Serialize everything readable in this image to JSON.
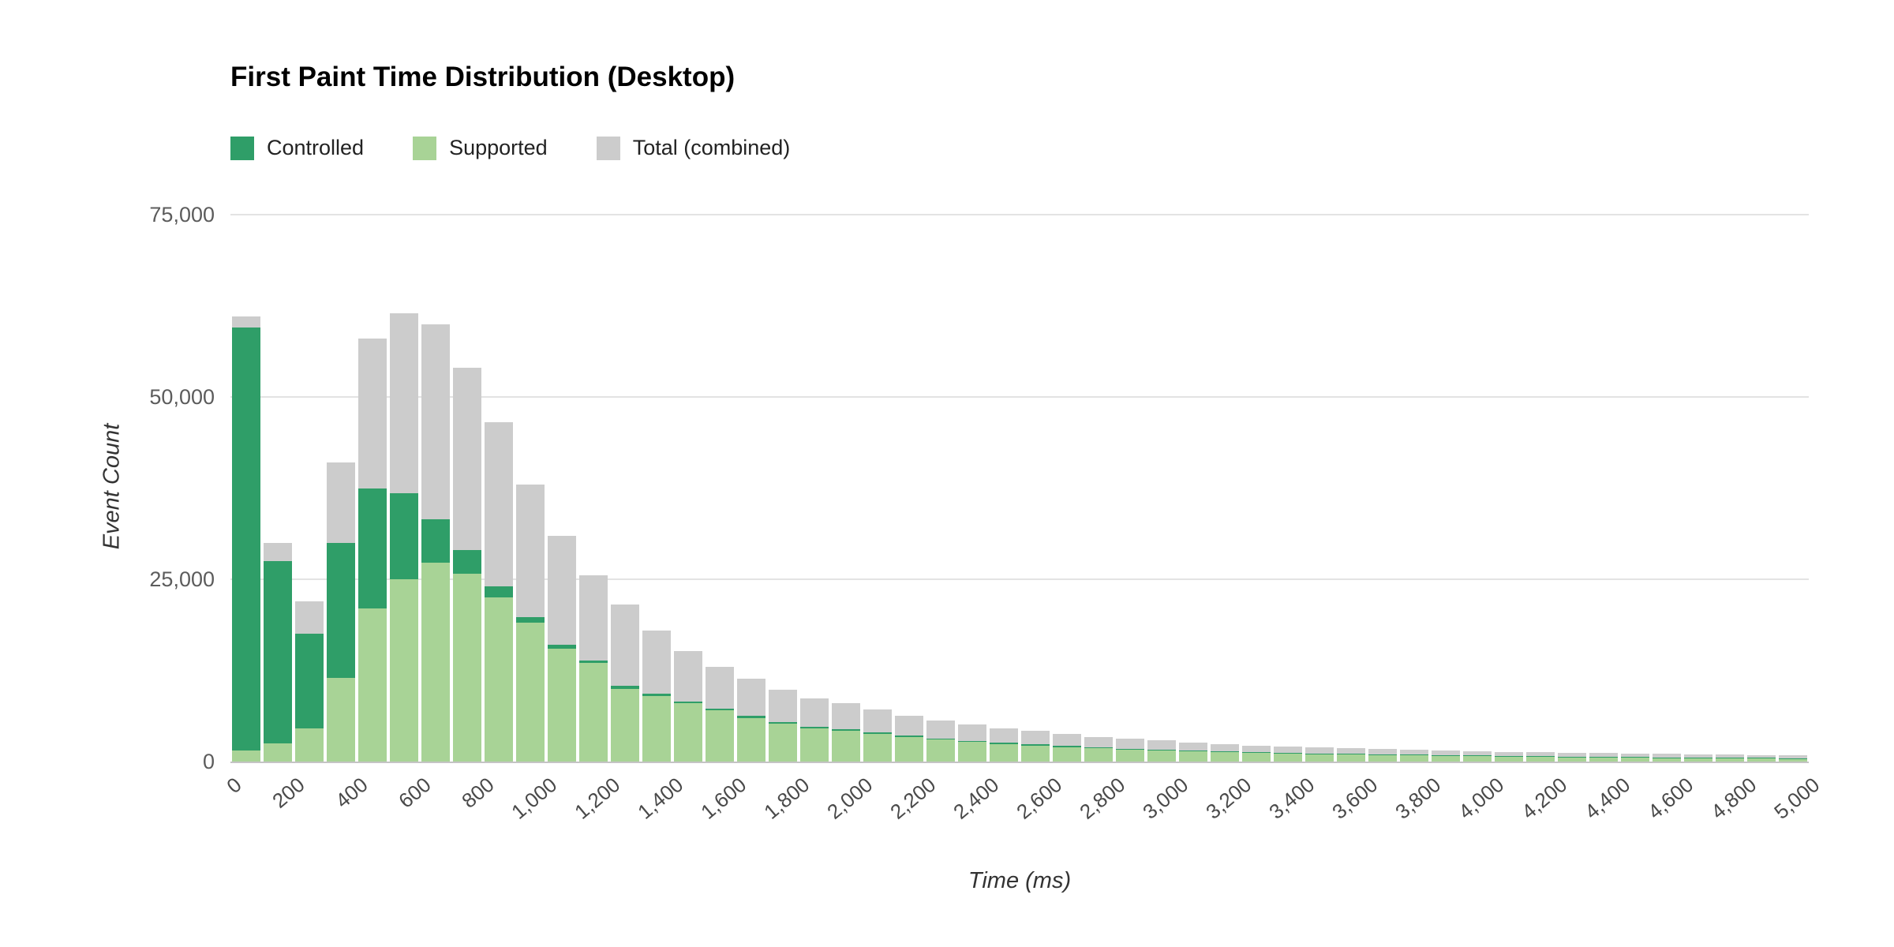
{
  "title": "First Paint Time Distribution (Desktop)",
  "colors": {
    "controlled": "#2f9e68",
    "supported": "#a8d396",
    "total": "#cccccc",
    "gridline": "#e3e3e3",
    "background": "#ffffff"
  },
  "legend": {
    "items": [
      {
        "label": "Controlled",
        "color": "#2f9e68"
      },
      {
        "label": "Supported",
        "color": "#a8d396"
      },
      {
        "label": "Total (combined)",
        "color": "#cccccc"
      }
    ]
  },
  "chart_data": {
    "type": "bar",
    "subtype": "stacked-histogram",
    "title": "First Paint Time Distribution (Desktop)",
    "xlabel": "Time (ms)",
    "ylabel": "Event Count",
    "x_range_ms": [
      0,
      5000
    ],
    "bin_width_ms": 100,
    "ylim": [
      0,
      75000
    ],
    "yticks": [
      0,
      25000,
      50000,
      75000
    ],
    "ytick_labels": [
      "0",
      "25,000",
      "50,000",
      "75,000"
    ],
    "xticks_ms": [
      0,
      200,
      400,
      600,
      800,
      1000,
      1200,
      1400,
      1600,
      1800,
      2000,
      2200,
      2400,
      2600,
      2800,
      3000,
      3200,
      3400,
      3600,
      3800,
      4000,
      4200,
      4400,
      4600,
      4800,
      5000
    ],
    "xtick_labels": [
      "0",
      "200",
      "400",
      "600",
      "800",
      "1,000",
      "1,200",
      "1,400",
      "1,600",
      "1,800",
      "2,000",
      "2,200",
      "2,400",
      "2,600",
      "2,800",
      "3,000",
      "3,200",
      "3,400",
      "3,600",
      "3,800",
      "4,000",
      "4,200",
      "4,400",
      "4,600",
      "4,800",
      "5,000"
    ],
    "grid": true,
    "legend_position": "top-left",
    "series": [
      {
        "name": "Controlled",
        "role": "stacked-on-supported",
        "color": "#2f9e68",
        "values": [
          58000,
          25000,
          13000,
          18500,
          16500,
          11800,
          5900,
          3200,
          1500,
          800,
          500,
          400,
          350,
          300,
          280,
          260,
          240,
          220,
          200,
          190,
          180,
          170,
          160,
          150,
          150,
          140,
          140,
          130,
          130,
          120,
          120,
          110,
          110,
          100,
          100,
          100,
          90,
          90,
          90,
          80,
          80,
          80,
          70,
          70,
          70,
          60,
          60,
          60,
          50,
          50
        ]
      },
      {
        "name": "Supported",
        "role": "stack-bottom",
        "color": "#a8d396",
        "values": [
          1500,
          2500,
          4500,
          11500,
          21000,
          25000,
          27300,
          25800,
          22500,
          19000,
          15500,
          13500,
          10000,
          9000,
          8000,
          7000,
          6000,
          5200,
          4600,
          4200,
          3800,
          3400,
          3000,
          2700,
          2400,
          2200,
          2000,
          1800,
          1600,
          1500,
          1400,
          1300,
          1200,
          1100,
          1000,
          950,
          900,
          850,
          800,
          750,
          700,
          650,
          600,
          580,
          550,
          520,
          500,
          480,
          450,
          430
        ]
      },
      {
        "name": "Total (combined)",
        "role": "background-total",
        "color": "#cccccc",
        "values": [
          61000,
          30000,
          22000,
          41000,
          58000,
          61500,
          60000,
          54000,
          46500,
          38000,
          31000,
          25500,
          21500,
          18000,
          15200,
          13000,
          11400,
          9800,
          8700,
          8000,
          7100,
          6300,
          5600,
          5100,
          4600,
          4200,
          3800,
          3400,
          3100,
          2900,
          2600,
          2400,
          2200,
          2100,
          1900,
          1800,
          1700,
          1600,
          1500,
          1400,
          1300,
          1250,
          1200,
          1150,
          1100,
          1050,
          1000,
          950,
          900,
          850
        ]
      }
    ]
  }
}
